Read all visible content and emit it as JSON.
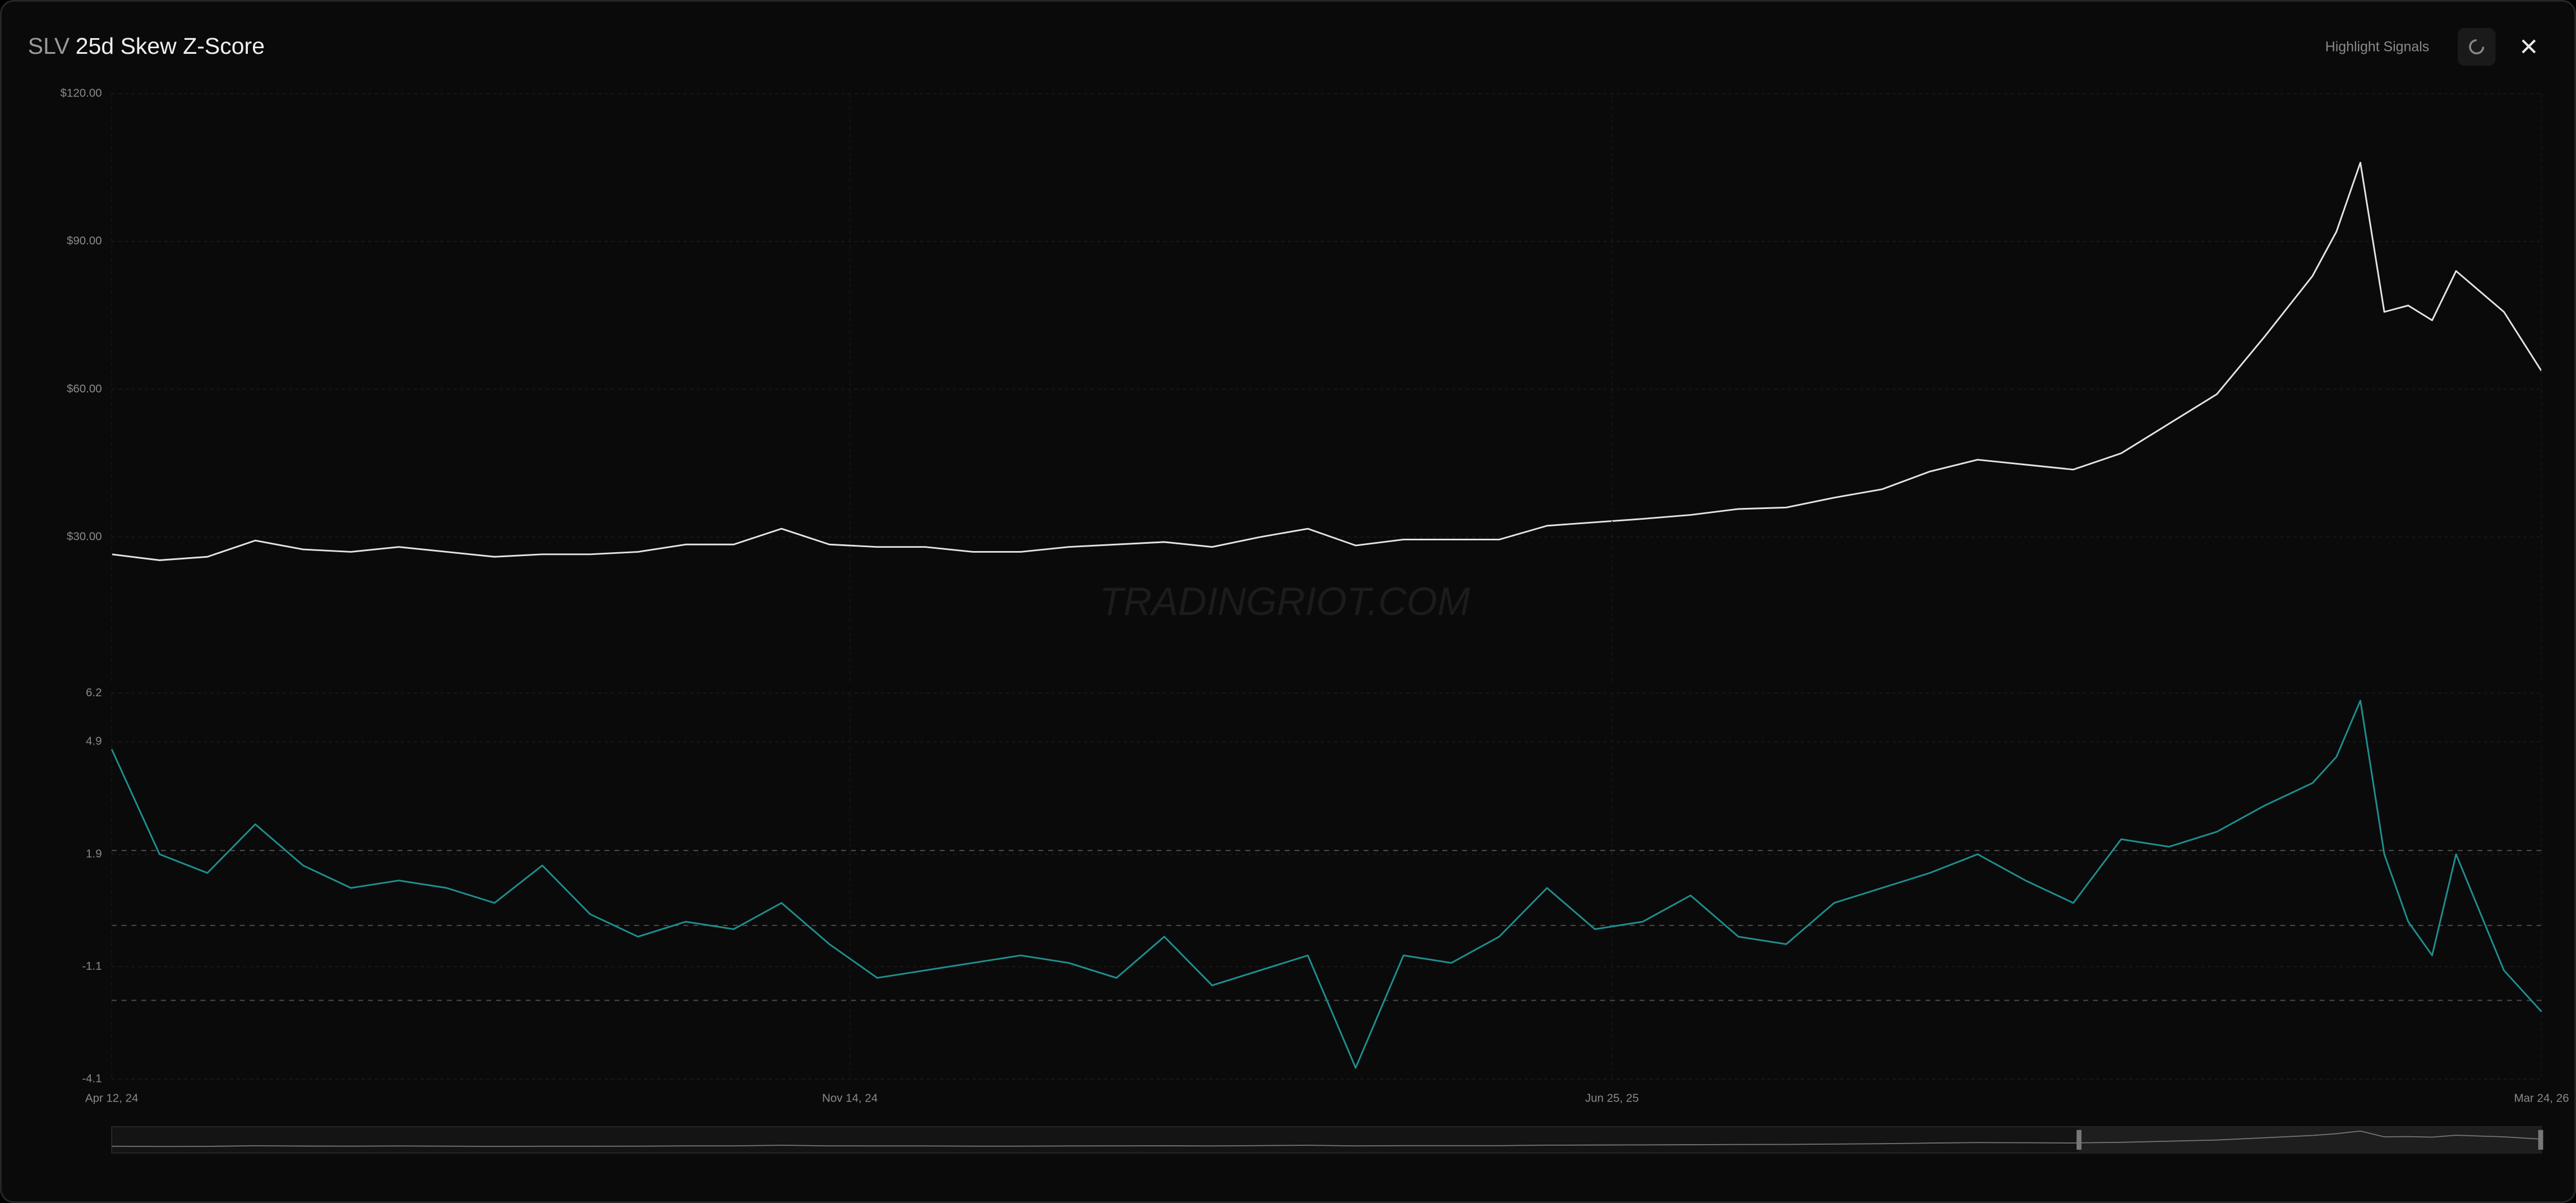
{
  "header": {
    "ticker": "SLV",
    "title": "25d Skew Z-Score",
    "button": "Highlight Signals"
  },
  "watermark": "TRADINGRIOT.COM",
  "chart_data": [
    {
      "type": "line",
      "color": "#e4e4e4",
      "grid": true,
      "x": [
        "2024-04-12",
        "2024-04-26",
        "2024-05-10",
        "2024-05-24",
        "2024-06-07",
        "2024-06-21",
        "2024-07-05",
        "2024-07-19",
        "2024-08-02",
        "2024-08-16",
        "2024-08-30",
        "2024-09-13",
        "2024-09-27",
        "2024-10-11",
        "2024-10-25",
        "2024-11-08",
        "2024-11-22",
        "2024-12-06",
        "2024-12-20",
        "2025-01-03",
        "2025-01-17",
        "2025-01-31",
        "2025-02-14",
        "2025-02-28",
        "2025-03-14",
        "2025-03-28",
        "2025-04-11",
        "2025-04-25",
        "2025-05-09",
        "2025-05-23",
        "2025-06-06",
        "2025-06-20",
        "2025-07-04",
        "2025-07-18",
        "2025-08-01",
        "2025-08-15",
        "2025-08-29",
        "2025-09-12",
        "2025-09-26",
        "2025-10-10",
        "2025-10-24",
        "2025-11-07",
        "2025-11-21",
        "2025-12-05",
        "2025-12-19",
        "2026-01-02",
        "2026-01-16",
        "2026-01-23",
        "2026-01-30",
        "2026-02-06",
        "2026-02-13",
        "2026-02-20",
        "2026-02-27",
        "2026-03-13",
        "2026-03-24"
      ],
      "values": [
        26.5,
        25.3,
        26,
        29.3,
        27.5,
        27,
        28,
        27,
        26,
        26.5,
        26.5,
        27,
        28.5,
        28.5,
        31.7,
        28.5,
        28,
        28,
        27,
        27,
        28,
        28.5,
        29,
        28,
        30,
        31.7,
        28.3,
        29.5,
        29.5,
        29.5,
        32.3,
        33,
        33.7,
        34.5,
        35.7,
        36,
        38,
        39.7,
        43.3,
        45.7,
        44.7,
        43.7,
        47,
        53,
        59,
        70.7,
        83,
        92,
        106,
        75.7,
        77,
        74,
        84,
        75.7,
        63.7
      ],
      "xlim": [
        "2024-04-12",
        "2026-03-24"
      ],
      "ylim": [
        0,
        120
      ],
      "yticks": [
        {
          "value": 30,
          "label": "$30.00"
        },
        {
          "value": 60,
          "label": "$60.00"
        },
        {
          "value": 90,
          "label": "$90.00"
        },
        {
          "value": 120,
          "label": "$120.00"
        }
      ]
    },
    {
      "type": "line",
      "color": "#1f8f8f",
      "grid": true,
      "x": [
        "2024-04-12",
        "2024-04-26",
        "2024-05-10",
        "2024-05-24",
        "2024-06-07",
        "2024-06-21",
        "2024-07-05",
        "2024-07-19",
        "2024-08-02",
        "2024-08-16",
        "2024-08-30",
        "2024-09-13",
        "2024-09-27",
        "2024-10-11",
        "2024-10-25",
        "2024-11-08",
        "2024-11-22",
        "2024-12-06",
        "2024-12-20",
        "2025-01-03",
        "2025-01-17",
        "2025-01-31",
        "2025-02-14",
        "2025-02-28",
        "2025-03-14",
        "2025-03-28",
        "2025-04-11",
        "2025-04-25",
        "2025-05-09",
        "2025-05-23",
        "2025-06-06",
        "2025-06-20",
        "2025-07-04",
        "2025-07-18",
        "2025-08-01",
        "2025-08-15",
        "2025-08-29",
        "2025-09-12",
        "2025-09-26",
        "2025-10-10",
        "2025-10-24",
        "2025-11-07",
        "2025-11-21",
        "2025-12-05",
        "2025-12-19",
        "2026-01-02",
        "2026-01-16",
        "2026-01-23",
        "2026-01-30",
        "2026-02-06",
        "2026-02-13",
        "2026-02-20",
        "2026-02-27",
        "2026-03-13",
        "2026-03-24"
      ],
      "values": [
        4.7,
        1.9,
        1.4,
        2.7,
        1.6,
        1,
        1.2,
        1,
        0.6,
        1.6,
        0.3,
        -0.3,
        0.1,
        -0.1,
        0.6,
        -0.5,
        -1.4,
        -1.2,
        -1,
        -0.8,
        -1,
        -1.4,
        -0.3,
        -1.6,
        -1.2,
        -0.8,
        -3.8,
        -0.8,
        -1,
        -0.3,
        1,
        -0.1,
        0.1,
        0.8,
        -0.3,
        -0.5,
        0.6,
        1,
        1.4,
        1.9,
        1.2,
        0.6,
        2.3,
        2.1,
        2.5,
        3.2,
        3.8,
        4.5,
        6,
        1.9,
        0.1,
        -0.8,
        1.9,
        -1.2,
        -2.3
      ],
      "xlim": [
        "2024-04-12",
        "2026-03-24"
      ],
      "ylim": [
        -4.1,
        6.2
      ],
      "yticks": [
        -4.1,
        -1.1,
        1.9,
        4.9,
        6.2
      ],
      "reference_lines": [
        2,
        0,
        -2
      ],
      "xticks": [
        {
          "value": "2024-04-12",
          "label": "Apr 12, 24"
        },
        {
          "value": "2024-11-14",
          "label": "Nov 14, 24"
        },
        {
          "value": "2025-06-25",
          "label": "Jun 25, 25"
        },
        {
          "value": "2026-03-24",
          "label": "Mar 24, 26"
        }
      ]
    }
  ]
}
